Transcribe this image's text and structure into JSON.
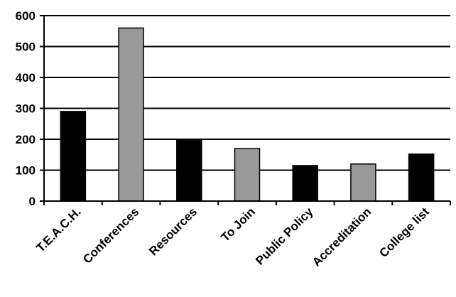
{
  "chart_data": {
    "type": "bar",
    "title": "",
    "xlabel": "",
    "ylabel": "",
    "ylim": [
      0,
      600
    ],
    "yticks": [
      0,
      100,
      200,
      300,
      400,
      500,
      600
    ],
    "grid": true,
    "legend": "none",
    "categories": [
      "T.E.A.C.H.",
      "Conferences",
      "Resources",
      "To Join",
      "Public Policy",
      "Accreditation",
      "College list"
    ],
    "values": [
      290,
      560,
      200,
      170,
      115,
      120,
      152
    ],
    "bar_colors": [
      "#000000",
      "#999999",
      "#000000",
      "#999999",
      "#000000",
      "#999999",
      "#000000"
    ],
    "colors": {
      "gridline": "#000000",
      "bar_outline": "#000000"
    }
  }
}
